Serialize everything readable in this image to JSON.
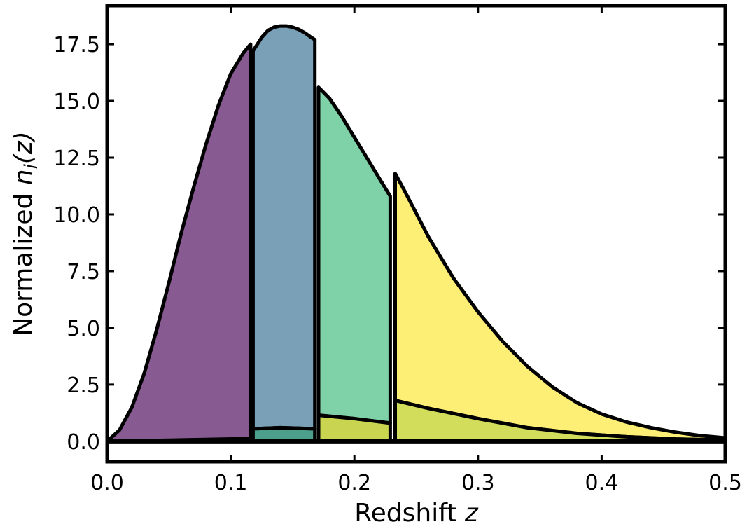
{
  "chart_data": {
    "type": "area",
    "title": "",
    "xlabel": "Redshift",
    "xlabel_var": "z",
    "ylabel": "Normalized",
    "ylabel_var": "n",
    "ylabel_sub": "i",
    "ylabel_arg": "(z)",
    "xlim": [
      0.0,
      0.5
    ],
    "ylim": [
      -0.9,
      19.2
    ],
    "xticks": [
      0.0,
      0.1,
      0.2,
      0.3,
      0.4,
      0.5
    ],
    "xtick_labels": [
      "0.0",
      "0.1",
      "0.2",
      "0.3",
      "0.4",
      "0.5"
    ],
    "yticks": [
      0.0,
      2.5,
      5.0,
      7.5,
      10.0,
      12.5,
      15.0,
      17.5
    ],
    "ytick_labels": [
      "0.0",
      "2.5",
      "5.0",
      "7.5",
      "10.0",
      "12.5",
      "15.0",
      "17.5"
    ],
    "grid": false,
    "legend": "none",
    "parent_distribution": {
      "x": [
        0.0,
        0.02,
        0.04,
        0.06,
        0.08,
        0.1,
        0.12,
        0.14,
        0.16,
        0.18,
        0.2,
        0.22,
        0.24,
        0.26,
        0.28,
        0.3,
        0.32,
        0.35,
        0.38,
        0.42,
        0.46,
        0.5
      ],
      "y": [
        0.0,
        1.4,
        5.0,
        9.2,
        13.0,
        15.8,
        17.4,
        17.7,
        16.8,
        15.1,
        13.0,
        10.9,
        9.0,
        7.3,
        5.9,
        4.7,
        3.6,
        2.4,
        1.5,
        0.8,
        0.4,
        0.2
      ]
    },
    "series": [
      {
        "color": "#875a91",
        "x": [
          0.0,
          0.01,
          0.02,
          0.03,
          0.04,
          0.05,
          0.06,
          0.07,
          0.08,
          0.09,
          0.1,
          0.11,
          0.116
        ],
        "y": [
          0.0,
          0.5,
          1.5,
          3.0,
          4.9,
          7.0,
          9.2,
          11.2,
          13.1,
          14.8,
          16.2,
          17.1,
          17.5
        ],
        "lower_x": [
          0.0,
          0.116
        ],
        "lower_y": [
          0.0,
          0.12
        ]
      },
      {
        "color": "#7aa0b8",
        "x": [
          0.118,
          0.125,
          0.13,
          0.135,
          0.14,
          0.145,
          0.15,
          0.155,
          0.16,
          0.165,
          0.168
        ],
        "y": [
          17.2,
          17.8,
          18.1,
          18.25,
          18.3,
          18.3,
          18.25,
          18.15,
          18.0,
          17.8,
          17.7
        ],
        "lower_x": [
          0.118,
          0.14,
          0.168
        ],
        "lower_y": [
          0.55,
          0.6,
          0.55
        ]
      },
      {
        "color": "#4d9e8a",
        "x": [
          0.118,
          0.14,
          0.168
        ],
        "y": [
          0.55,
          0.6,
          0.55
        ],
        "lower_x": [
          0.118,
          0.168
        ],
        "lower_y": [
          0.0,
          0.0
        ]
      },
      {
        "color": "#7fd2a8",
        "x": [
          0.171,
          0.18,
          0.19,
          0.2,
          0.21,
          0.22,
          0.229
        ],
        "y": [
          15.6,
          15.1,
          14.3,
          13.4,
          12.5,
          11.6,
          10.8
        ],
        "lower_x": [
          0.171,
          0.2,
          0.229
        ],
        "lower_y": [
          1.15,
          1.0,
          0.8
        ]
      },
      {
        "color": "#c9d551",
        "x": [
          0.171,
          0.2,
          0.229
        ],
        "y": [
          1.15,
          1.0,
          0.8
        ],
        "lower_x": [
          0.171,
          0.229
        ],
        "lower_y": [
          0.0,
          0.0
        ]
      },
      {
        "color": "#fdee75",
        "x": [
          0.233,
          0.24,
          0.26,
          0.28,
          0.3,
          0.32,
          0.34,
          0.36,
          0.38,
          0.4,
          0.42,
          0.44,
          0.46,
          0.48,
          0.5
        ],
        "y": [
          11.8,
          11.1,
          9.0,
          7.2,
          5.7,
          4.4,
          3.3,
          2.4,
          1.7,
          1.2,
          0.85,
          0.6,
          0.4,
          0.25,
          0.15
        ],
        "lower_x": [
          0.233,
          0.26,
          0.3,
          0.34,
          0.38,
          0.42,
          0.46,
          0.5
        ],
        "lower_y": [
          1.8,
          1.45,
          1.0,
          0.6,
          0.35,
          0.2,
          0.1,
          0.05
        ]
      },
      {
        "color": "#d3dd5c",
        "x": [
          0.233,
          0.26,
          0.3,
          0.34,
          0.38,
          0.42,
          0.46,
          0.5
        ],
        "y": [
          1.8,
          1.45,
          1.0,
          0.6,
          0.35,
          0.2,
          0.1,
          0.05
        ],
        "lower_x": [
          0.233,
          0.5
        ],
        "lower_y": [
          0.0,
          0.0
        ]
      }
    ]
  }
}
